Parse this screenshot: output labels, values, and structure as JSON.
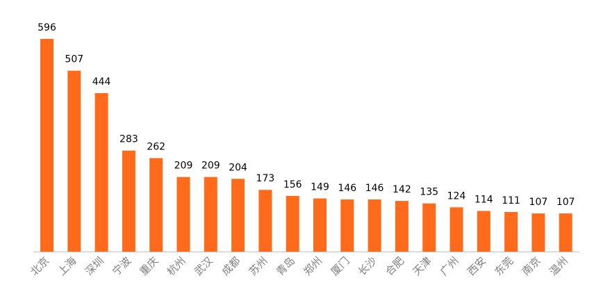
{
  "chart_data": {
    "type": "bar",
    "title": "",
    "xlabel": "",
    "ylabel": "",
    "categories": [
      "北京",
      "上海",
      "深圳",
      "宁波",
      "重庆",
      "杭州",
      "武汉",
      "成都",
      "苏州",
      "青岛",
      "郑州",
      "厦门",
      "长沙",
      "合肥",
      "天津",
      "广州",
      "西安",
      "东莞",
      "南京",
      "温州"
    ],
    "values": [
      596,
      507,
      444,
      283,
      262,
      209,
      209,
      204,
      173,
      156,
      149,
      146,
      146,
      142,
      135,
      124,
      114,
      111,
      107,
      107
    ],
    "ylim": [
      0,
      596
    ],
    "grid": false,
    "legend": "none",
    "bar_color": "#FF6B1A",
    "axis_color": "#bfbfbf"
  }
}
